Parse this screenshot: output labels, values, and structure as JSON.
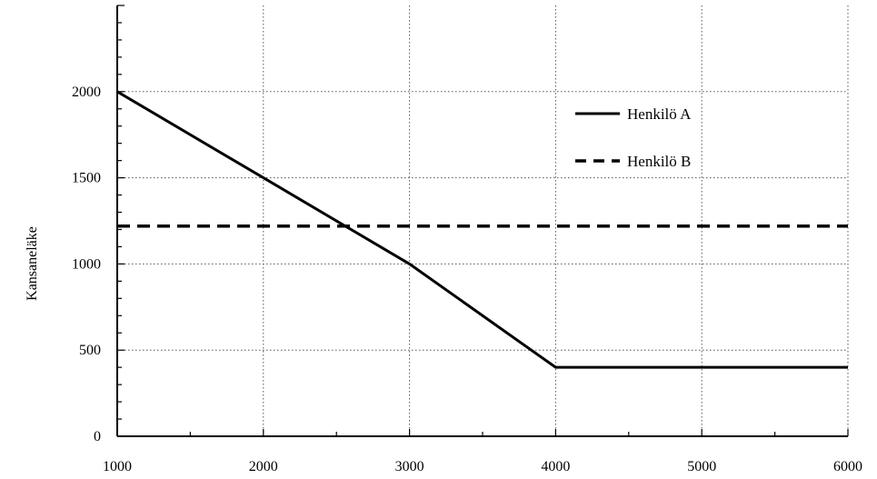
{
  "chart_data": {
    "type": "line",
    "title": "",
    "xlabel": "",
    "ylabel": "Kansaneläke",
    "xlim": [
      1000,
      6000
    ],
    "ylim": [
      0,
      2500
    ],
    "grid": true,
    "legend_position": "top-right",
    "x_ticks": [
      "1000",
      "2000",
      "3000",
      "4000",
      "5000",
      "6000"
    ],
    "y_ticks": [
      "0",
      "500",
      "1000",
      "1500",
      "2000"
    ],
    "series": [
      {
        "name": "Henkilö A",
        "style": "solid",
        "color": "#000000",
        "points": [
          [
            1000,
            2000
          ],
          [
            2000,
            1500
          ],
          [
            3000,
            1000
          ],
          [
            4000,
            400
          ],
          [
            6000,
            400
          ]
        ]
      },
      {
        "name": "Henkilö B",
        "style": "dashed",
        "color": "#000000",
        "points": [
          [
            1000,
            1220
          ],
          [
            6000,
            1220
          ]
        ]
      }
    ]
  }
}
